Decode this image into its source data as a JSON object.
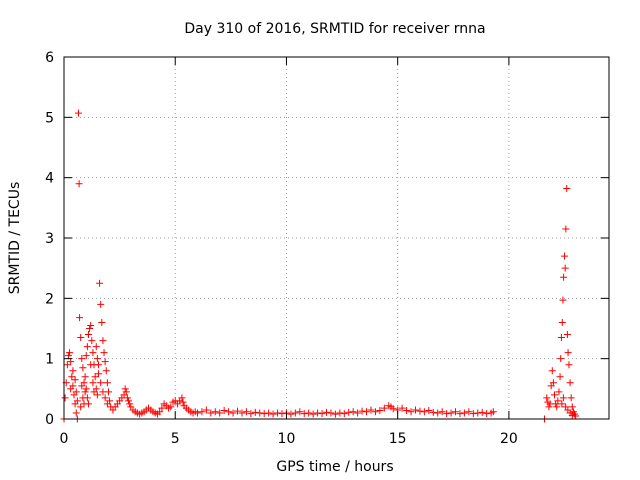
{
  "chart_data": {
    "type": "scatter",
    "title": "Day 310 of 2016, SRMTID for receiver rnna",
    "xlabel": "GPS time / hours",
    "ylabel": "SRMTID / TECUs",
    "xlim": [
      0,
      24.5
    ],
    "ylim": [
      0,
      6
    ],
    "xticks": [
      0,
      5,
      10,
      15,
      20
    ],
    "yticks": [
      0,
      1,
      2,
      3,
      4,
      5,
      6
    ],
    "xtick_labels": [
      "0",
      "5",
      "10",
      "15",
      "20"
    ],
    "ytick_labels": [
      "0",
      "1",
      "2",
      "3",
      "4",
      "5",
      "6"
    ],
    "grid": true,
    "marker": "+",
    "marker_color": "#ff0000",
    "series": [
      {
        "name": "SRMTID",
        "points": [
          [
            0.0,
            0.0
          ],
          [
            0.05,
            0.35
          ],
          [
            0.1,
            0.6
          ],
          [
            0.15,
            0.9
          ],
          [
            0.2,
            1.05
          ],
          [
            0.25,
            1.1
          ],
          [
            0.3,
            0.95
          ],
          [
            0.35,
            0.7
          ],
          [
            0.4,
            0.55
          ],
          [
            0.45,
            0.4
          ],
          [
            0.5,
            0.25
          ],
          [
            0.55,
            0.1
          ],
          [
            0.6,
            0.0
          ],
          [
            0.65,
            5.07
          ],
          [
            0.68,
            3.9
          ],
          [
            0.7,
            1.68
          ],
          [
            0.75,
            1.35
          ],
          [
            0.8,
            1.0
          ],
          [
            0.85,
            0.85
          ],
          [
            0.9,
            0.6
          ],
          [
            0.95,
            0.45
          ],
          [
            1.0,
            1.05
          ],
          [
            1.05,
            1.2
          ],
          [
            1.1,
            1.4
          ],
          [
            1.15,
            1.5
          ],
          [
            1.2,
            1.55
          ],
          [
            1.25,
            1.3
          ],
          [
            1.3,
            1.1
          ],
          [
            1.35,
            0.9
          ],
          [
            1.4,
            0.7
          ],
          [
            1.45,
            0.5
          ],
          [
            1.5,
            0.4
          ],
          [
            1.55,
            0.9
          ],
          [
            1.6,
            2.25
          ],
          [
            1.65,
            1.9
          ],
          [
            1.7,
            1.6
          ],
          [
            1.75,
            1.3
          ],
          [
            1.8,
            1.1
          ],
          [
            1.85,
            0.95
          ],
          [
            1.9,
            0.8
          ],
          [
            1.95,
            0.6
          ],
          [
            2.0,
            0.45
          ],
          [
            2.05,
            0.3
          ],
          [
            0.3,
            0.5
          ],
          [
            0.4,
            0.8
          ],
          [
            0.5,
            0.65
          ],
          [
            0.55,
            0.45
          ],
          [
            0.6,
            0.3
          ],
          [
            0.75,
            0.2
          ],
          [
            0.8,
            0.55
          ],
          [
            0.85,
            0.35
          ],
          [
            0.9,
            0.25
          ],
          [
            0.95,
            0.7
          ],
          [
            1.0,
            0.5
          ],
          [
            1.05,
            0.35
          ],
          [
            1.1,
            0.25
          ],
          [
            1.2,
            0.9
          ],
          [
            1.3,
            0.6
          ],
          [
            1.35,
            0.45
          ],
          [
            1.45,
            1.2
          ],
          [
            1.5,
            1.0
          ],
          [
            1.55,
            0.75
          ],
          [
            1.65,
            0.6
          ],
          [
            1.75,
            0.45
          ],
          [
            1.85,
            0.35
          ],
          [
            1.95,
            0.25
          ],
          [
            2.1,
            0.2
          ],
          [
            2.2,
            0.15
          ],
          [
            2.3,
            0.2
          ],
          [
            2.4,
            0.25
          ],
          [
            2.5,
            0.3
          ],
          [
            2.6,
            0.35
          ],
          [
            2.7,
            0.4
          ],
          [
            2.75,
            0.5
          ],
          [
            2.8,
            0.45
          ],
          [
            2.85,
            0.35
          ],
          [
            2.9,
            0.3
          ],
          [
            2.95,
            0.25
          ],
          [
            3.0,
            0.2
          ],
          [
            3.1,
            0.15
          ],
          [
            3.2,
            0.12
          ],
          [
            3.3,
            0.1
          ],
          [
            3.4,
            0.08
          ],
          [
            3.5,
            0.1
          ],
          [
            3.6,
            0.12
          ],
          [
            3.7,
            0.15
          ],
          [
            3.8,
            0.18
          ],
          [
            3.9,
            0.15
          ],
          [
            4.0,
            0.12
          ],
          [
            4.1,
            0.1
          ],
          [
            4.2,
            0.08
          ],
          [
            4.3,
            0.12
          ],
          [
            4.4,
            0.18
          ],
          [
            4.5,
            0.25
          ],
          [
            4.6,
            0.22
          ],
          [
            4.7,
            0.18
          ],
          [
            4.8,
            0.2
          ],
          [
            4.9,
            0.28
          ],
          [
            5.0,
            0.3
          ],
          [
            5.1,
            0.25
          ],
          [
            5.2,
            0.3
          ],
          [
            5.3,
            0.35
          ],
          [
            5.35,
            0.28
          ],
          [
            5.4,
            0.22
          ],
          [
            5.5,
            0.18
          ],
          [
            5.6,
            0.15
          ],
          [
            5.7,
            0.12
          ],
          [
            5.8,
            0.1
          ],
          [
            5.9,
            0.12
          ],
          [
            6.0,
            0.1
          ],
          [
            6.2,
            0.12
          ],
          [
            6.4,
            0.15
          ],
          [
            6.6,
            0.1
          ],
          [
            6.8,
            0.12
          ],
          [
            7.0,
            0.1
          ],
          [
            7.2,
            0.14
          ],
          [
            7.4,
            0.12
          ],
          [
            7.6,
            0.1
          ],
          [
            7.8,
            0.13
          ],
          [
            8.0,
            0.1
          ],
          [
            8.2,
            0.12
          ],
          [
            8.4,
            0.09
          ],
          [
            8.6,
            0.11
          ],
          [
            8.8,
            0.1
          ],
          [
            9.0,
            0.09
          ],
          [
            9.2,
            0.1
          ],
          [
            9.4,
            0.08
          ],
          [
            9.6,
            0.1
          ],
          [
            9.8,
            0.09
          ],
          [
            10.0,
            0.1
          ],
          [
            10.2,
            0.08
          ],
          [
            10.4,
            0.1
          ],
          [
            10.6,
            0.12
          ],
          [
            10.8,
            0.09
          ],
          [
            11.0,
            0.1
          ],
          [
            11.2,
            0.08
          ],
          [
            11.4,
            0.1
          ],
          [
            11.6,
            0.09
          ],
          [
            11.8,
            0.11
          ],
          [
            12.0,
            0.1
          ],
          [
            12.2,
            0.08
          ],
          [
            12.4,
            0.1
          ],
          [
            12.6,
            0.09
          ],
          [
            12.8,
            0.11
          ],
          [
            13.0,
            0.12
          ],
          [
            13.2,
            0.1
          ],
          [
            13.4,
            0.13
          ],
          [
            13.6,
            0.12
          ],
          [
            13.8,
            0.15
          ],
          [
            14.0,
            0.12
          ],
          [
            14.2,
            0.14
          ],
          [
            14.4,
            0.18
          ],
          [
            14.6,
            0.22
          ],
          [
            14.7,
            0.2
          ],
          [
            14.8,
            0.17
          ],
          [
            15.0,
            0.15
          ],
          [
            15.2,
            0.18
          ],
          [
            15.4,
            0.14
          ],
          [
            15.6,
            0.12
          ],
          [
            15.8,
            0.15
          ],
          [
            16.0,
            0.13
          ],
          [
            16.2,
            0.12
          ],
          [
            16.4,
            0.14
          ],
          [
            16.6,
            0.11
          ],
          [
            16.8,
            0.1
          ],
          [
            17.0,
            0.12
          ],
          [
            17.2,
            0.09
          ],
          [
            17.4,
            0.1
          ],
          [
            17.6,
            0.12
          ],
          [
            17.8,
            0.09
          ],
          [
            18.0,
            0.1
          ],
          [
            18.2,
            0.12
          ],
          [
            18.4,
            0.09
          ],
          [
            18.6,
            0.1
          ],
          [
            18.8,
            0.11
          ],
          [
            19.0,
            0.09
          ],
          [
            19.2,
            0.1
          ],
          [
            19.3,
            0.12
          ],
          [
            21.6,
            0.0
          ],
          [
            21.7,
            0.35
          ],
          [
            21.75,
            0.28
          ],
          [
            21.8,
            0.2
          ],
          [
            21.85,
            0.25
          ],
          [
            21.9,
            0.55
          ],
          [
            21.95,
            0.8
          ],
          [
            22.0,
            0.6
          ],
          [
            22.05,
            0.4
          ],
          [
            22.1,
            0.25
          ],
          [
            22.15,
            0.2
          ],
          [
            22.2,
            0.3
          ],
          [
            22.25,
            0.45
          ],
          [
            22.3,
            0.7
          ],
          [
            22.33,
            1.0
          ],
          [
            22.36,
            1.35
          ],
          [
            22.4,
            1.6
          ],
          [
            22.43,
            1.97
          ],
          [
            22.46,
            2.35
          ],
          [
            22.5,
            2.7
          ],
          [
            22.53,
            2.5
          ],
          [
            22.56,
            3.15
          ],
          [
            22.6,
            3.82
          ],
          [
            22.63,
            1.4
          ],
          [
            22.66,
            1.1
          ],
          [
            22.7,
            0.9
          ],
          [
            22.75,
            0.6
          ],
          [
            22.8,
            0.35
          ],
          [
            22.85,
            0.2
          ],
          [
            22.9,
            0.12
          ],
          [
            22.95,
            0.08
          ],
          [
            23.0,
            0.05
          ],
          [
            22.38,
            0.25
          ],
          [
            22.45,
            0.35
          ],
          [
            22.55,
            0.2
          ],
          [
            22.65,
            0.15
          ],
          [
            22.75,
            0.1
          ],
          [
            22.85,
            0.06
          ]
        ]
      }
    ]
  }
}
